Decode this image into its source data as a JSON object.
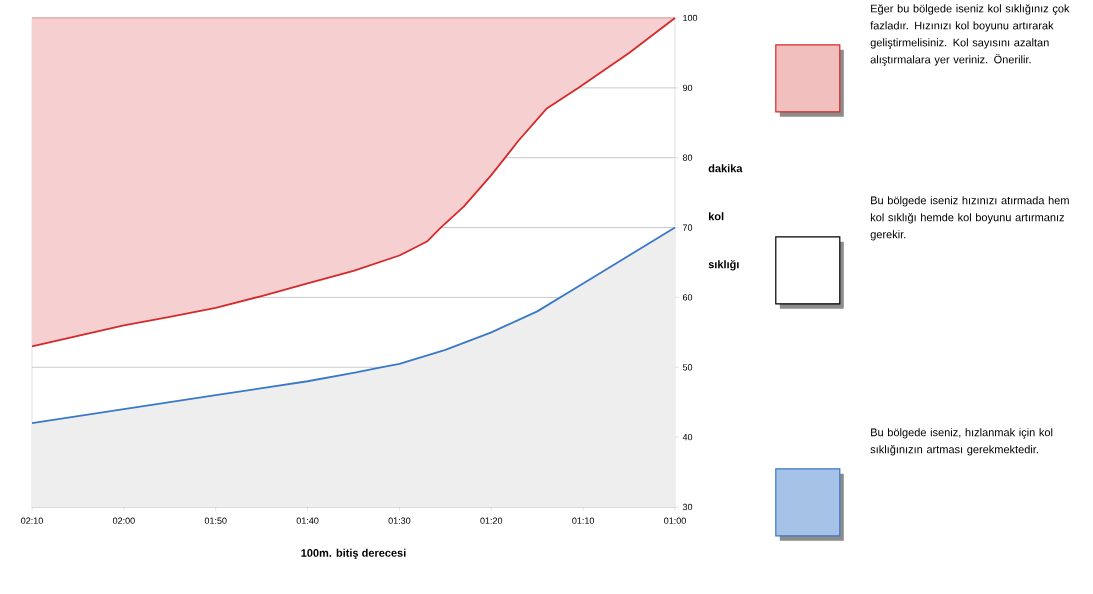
{
  "chart_data": {
    "type": "line",
    "xlabel": "100m. bitiş derecesi",
    "ylabel": "dakika kol sıklığı",
    "x": [
      130,
      125,
      120,
      115,
      110,
      105,
      100,
      95,
      90,
      87,
      85.5,
      83,
      80,
      77,
      74,
      70.5,
      65,
      60
    ],
    "series": [
      {
        "name": "Eğer bu bölgede iseniz kol sıklığınız çok fazladır. Hızınızı kol boyunu artırarak geliştirmelisiniz. Kol sayısını azaltan alıştırmalara yer veriniz. Önerilir.",
        "color": "#d42a2a",
        "values": [
          53,
          54.5,
          56,
          57.2,
          58.5,
          60.2,
          62,
          63.8,
          66,
          68,
          70,
          73,
          77.5,
          82.5,
          87,
          90,
          95,
          100
        ],
        "lower": [
          53,
          54.5,
          56,
          57.2,
          58.5,
          60.2,
          62,
          63.8,
          66,
          68,
          70,
          73,
          77.5,
          82.5,
          87,
          90,
          95,
          100
        ],
        "upper": [
          100,
          100,
          100,
          100,
          100,
          100,
          100,
          100,
          100,
          100,
          100,
          100,
          100,
          100,
          100,
          100,
          100,
          100
        ]
      },
      {
        "name": "Bu bölgede iseniz, hızlanmak için kol sıklığınızın artması gerekmektedir.",
        "type": "area",
        "color": "#3a78c8",
        "x": [
          130,
          120,
          110,
          100,
          95,
          92,
          90,
          85,
          80,
          75,
          70,
          65,
          60
        ],
        "values": [
          42,
          44,
          46,
          48,
          49.2,
          50,
          50.5,
          52.5,
          55,
          58,
          62,
          66,
          70
        ]
      }
    ],
    "annotations": [
      "Bu bölgede iseniz hızınızı atırmada hem kol sıklığı hemde kol boyunu artırmanız gerekir."
    ],
    "xlim": [
      130,
      60
    ],
    "xticks": [
      {
        "value": 130,
        "label": "02:10"
      },
      {
        "value": 120,
        "label": "02:00"
      },
      {
        "value": 110,
        "label": "01:50"
      },
      {
        "value": 100,
        "label": "01:40"
      },
      {
        "value": 90,
        "label": "01:30"
      },
      {
        "value": 80,
        "label": "01:20"
      },
      {
        "value": 70,
        "label": "01:10"
      },
      {
        "value": 60,
        "label": "01:00"
      }
    ],
    "ylim": [
      30,
      100
    ],
    "yticks": [
      30,
      40,
      50,
      60,
      70,
      80,
      90,
      100
    ],
    "grid": "y",
    "legend": "right"
  }
}
